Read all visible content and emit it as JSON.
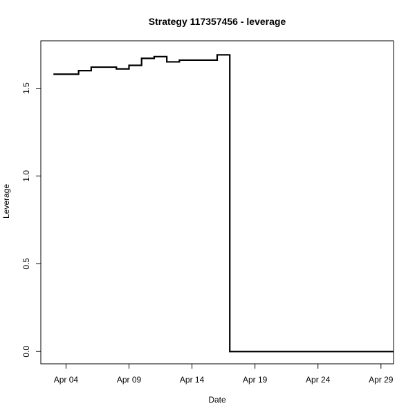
{
  "chart_data": {
    "type": "line",
    "step": true,
    "title": "Strategy 117357456 - leverage",
    "xlabel": "Date",
    "ylabel": "Leverage",
    "x_date_range": [
      2,
      30
    ],
    "ylim": [
      -0.07,
      1.77
    ],
    "x_ticks": [
      {
        "day": 4,
        "label": "Apr 04"
      },
      {
        "day": 9,
        "label": "Apr 09"
      },
      {
        "day": 14,
        "label": "Apr 14"
      },
      {
        "day": 19,
        "label": "Apr 19"
      },
      {
        "day": 24,
        "label": "Apr 24"
      },
      {
        "day": 29,
        "label": "Apr 29"
      }
    ],
    "y_ticks": [
      {
        "value": 0.0,
        "label": "0.0"
      },
      {
        "value": 0.5,
        "label": "0.5"
      },
      {
        "value": 1.0,
        "label": "1.0"
      },
      {
        "value": 1.5,
        "label": "1.5"
      }
    ],
    "series": [
      {
        "name": "leverage",
        "color": "#000000",
        "points": [
          {
            "day": 3.0,
            "value": 1.58
          },
          {
            "day": 5.0,
            "value": 1.6
          },
          {
            "day": 6.0,
            "value": 1.62
          },
          {
            "day": 8.0,
            "value": 1.61
          },
          {
            "day": 9.0,
            "value": 1.63
          },
          {
            "day": 10.0,
            "value": 1.67
          },
          {
            "day": 11.0,
            "value": 1.68
          },
          {
            "day": 12.0,
            "value": 1.65
          },
          {
            "day": 13.0,
            "value": 1.66
          },
          {
            "day": 16.0,
            "value": 1.69
          },
          {
            "day": 17.0,
            "value": 0.0
          },
          {
            "day": 30.0,
            "value": 0.0
          }
        ]
      }
    ]
  }
}
